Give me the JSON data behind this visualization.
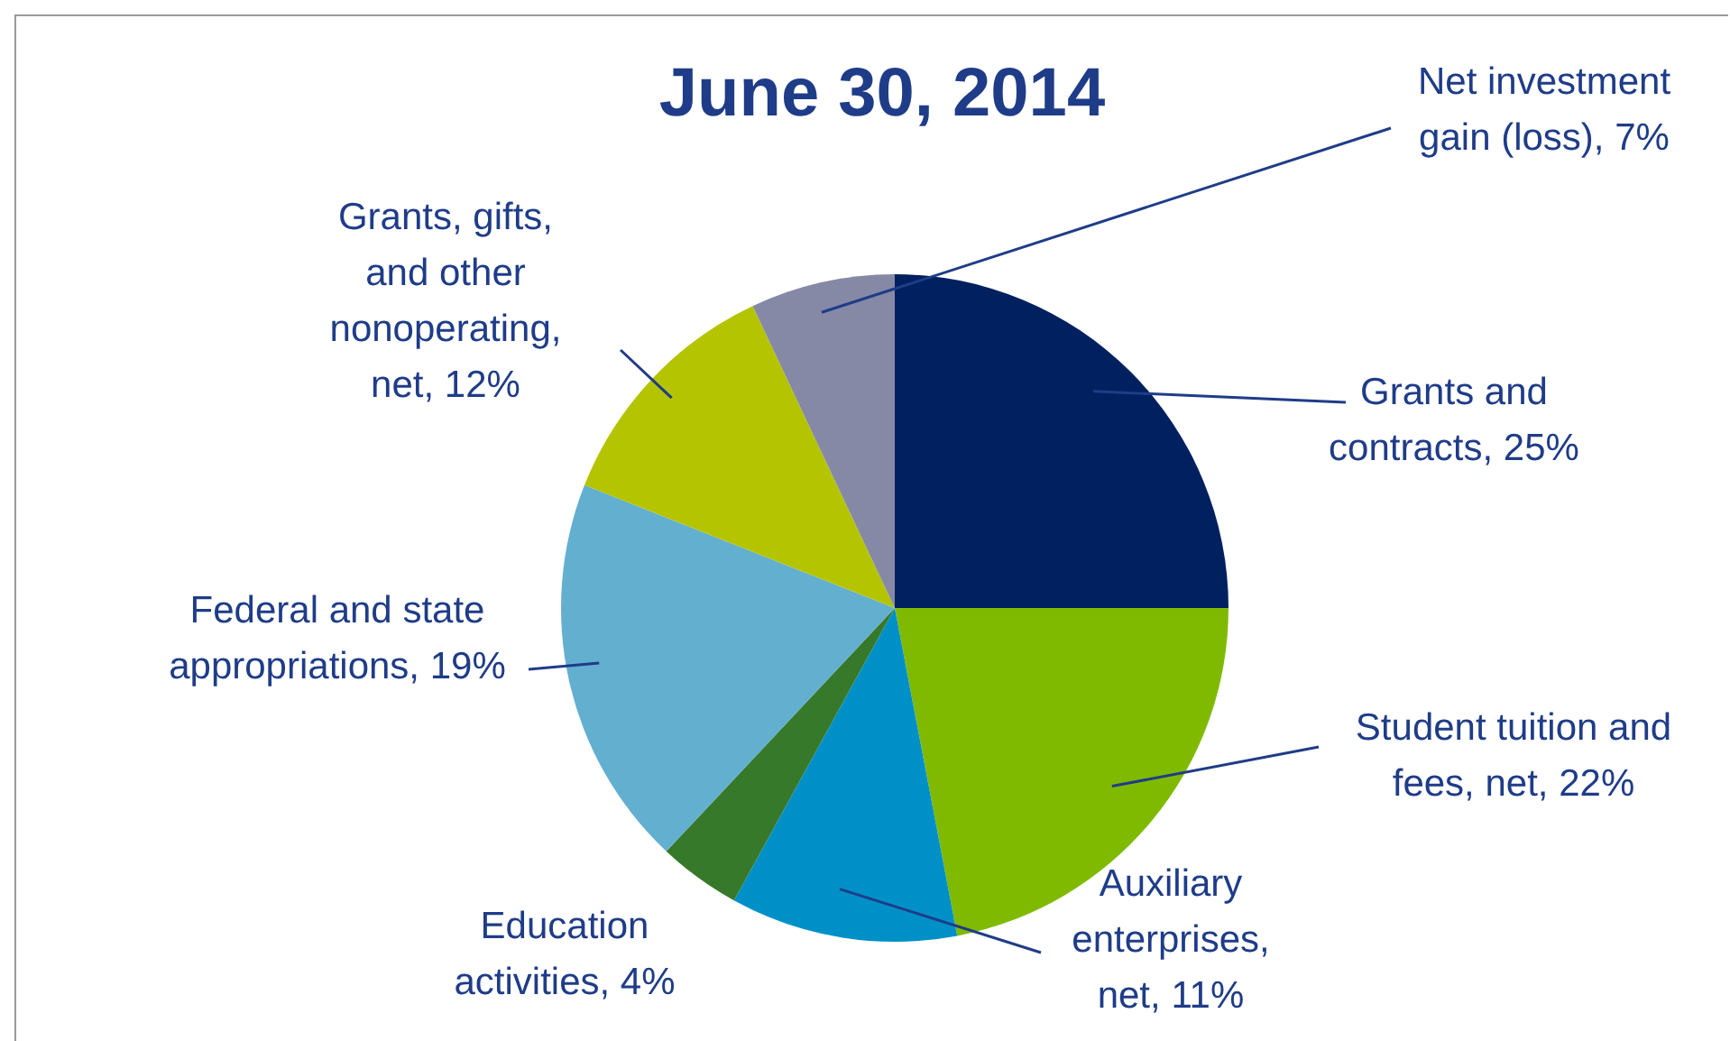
{
  "chart_data": {
    "type": "pie",
    "title": "June 30, 2014",
    "categories": [
      "Grants and contracts",
      "Student tuition and fees, net",
      "Auxiliary enterprises, net",
      "Education activities",
      "Federal and state appropriations",
      "Grants, gifts, and other nonoperating, net",
      "Net investment gain (loss)"
    ],
    "values": [
      25,
      22,
      11,
      4,
      19,
      12,
      7
    ],
    "value_labels": [
      "25%",
      "22%",
      "11%",
      "4%",
      "19%",
      "12%",
      "7%"
    ],
    "colors": [
      "#002060",
      "#7fba00",
      "#0090c8",
      "#37792a",
      "#63afd0",
      "#b4c400",
      "#8589a6"
    ]
  }
}
